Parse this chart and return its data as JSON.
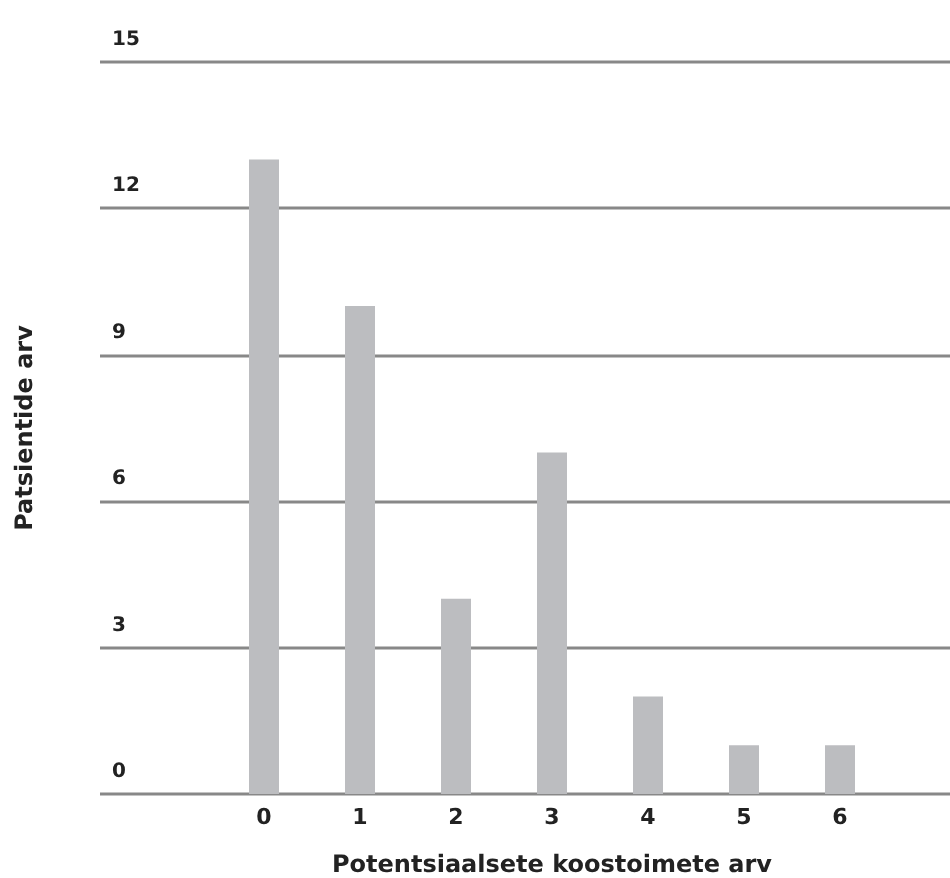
{
  "chart_data": {
    "type": "bar",
    "xlabel": "Potentsiaalsete koostoimete arv",
    "ylabel": "Patsientide arv",
    "categories": [
      "0",
      "1",
      "2",
      "3",
      "4",
      "5",
      "6"
    ],
    "values": [
      13,
      10,
      4,
      7,
      2,
      1,
      1
    ],
    "color": "#bcbdc0",
    "ylim": [
      0,
      15
    ],
    "yticks": [
      0,
      3,
      6,
      9,
      12,
      15
    ],
    "grid": "y"
  }
}
